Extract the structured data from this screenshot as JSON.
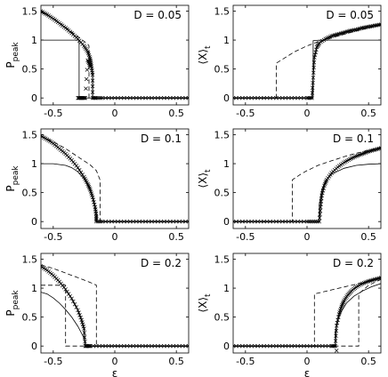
{
  "chart_data": [
    {
      "type": "line",
      "panel": "D = 0.05",
      "ylabel": "P",
      "ylabel_sub": "peak",
      "xlabel": "",
      "xlim": [
        -0.6,
        0.6
      ],
      "ylim": [
        -0.12,
        1.6
      ],
      "xticks": [
        -0.5,
        0,
        0.5
      ],
      "xtick_labels": [
        "-0.5",
        "0",
        "0.5"
      ],
      "yticks": [
        0,
        0.5,
        1,
        1.5
      ],
      "ytick_labels": [
        "0",
        "0.5",
        "1",
        "1.5"
      ],
      "series": [
        {
          "style": "solid",
          "x": [
            -0.6,
            -0.29,
            -0.29,
            0.6
          ],
          "y": [
            1.0,
            1.0,
            0.0,
            0.0
          ]
        },
        {
          "style": "dashed",
          "x": [
            -0.6,
            -0.5,
            -0.4,
            -0.3,
            -0.25,
            -0.22,
            -0.21,
            -0.21,
            0.6
          ],
          "y": [
            1.48,
            1.38,
            1.22,
            1.06,
            0.98,
            0.93,
            0.9,
            0.0,
            0.0
          ]
        },
        {
          "style": "markers-solid",
          "x": [
            -0.6,
            -0.55,
            -0.5,
            -0.45,
            -0.4,
            -0.35,
            -0.3,
            -0.25,
            -0.22,
            -0.2,
            -0.19,
            -0.18,
            -0.18,
            -0.15,
            -0.1,
            0.0,
            0.1,
            0.2,
            0.3,
            0.4,
            0.5,
            0.6
          ],
          "y": [
            1.5,
            1.44,
            1.37,
            1.29,
            1.21,
            1.12,
            1.02,
            0.9,
            0.8,
            0.68,
            0.55,
            0.4,
            0.0,
            0.0,
            0.0,
            0.0,
            0.0,
            0.0,
            0.0,
            0.0,
            0.0,
            0.0
          ]
        },
        {
          "style": "markers",
          "x": [
            -0.3,
            -0.28,
            -0.26,
            -0.24,
            -0.22,
            -0.2
          ],
          "y": [
            0.0,
            0.0,
            0.0,
            0.0,
            0.65,
            0.55
          ]
        }
      ]
    },
    {
      "type": "line",
      "panel": "D = 0.05",
      "ylabel": "⟨X⟩",
      "ylabel_sub": "t",
      "xlabel": "",
      "xlim": [
        -0.6,
        0.6
      ],
      "ylim": [
        -0.12,
        1.6
      ],
      "xticks": [
        -0.5,
        0,
        0.5
      ],
      "xtick_labels": [
        "-0.5",
        "0",
        "0.5"
      ],
      "yticks": [
        0,
        0.5,
        1,
        1.5
      ],
      "ytick_labels": [
        "0",
        "0.5",
        "1",
        "1.5"
      ],
      "series": [
        {
          "style": "solid",
          "x": [
            -0.6,
            0.05,
            0.05,
            0.1,
            0.2,
            0.3,
            0.4,
            0.5,
            0.6
          ],
          "y": [
            0.0,
            0.0,
            0.99,
            1.0,
            1.0,
            1.0,
            1.0,
            1.0,
            1.0
          ]
        },
        {
          "style": "dashed",
          "x": [
            -0.6,
            -0.25,
            -0.25,
            -0.1,
            0.0,
            0.1,
            0.2,
            0.3,
            0.4,
            0.5,
            0.6
          ],
          "y": [
            0.0,
            0.0,
            0.6,
            0.8,
            0.9,
            0.98,
            1.04,
            1.1,
            1.16,
            1.21,
            1.26
          ]
        },
        {
          "style": "markers-solid",
          "x": [
            -0.6,
            -0.5,
            -0.4,
            -0.3,
            -0.2,
            -0.1,
            0.0,
            0.04,
            0.05,
            0.06,
            0.08,
            0.1,
            0.15,
            0.2,
            0.25,
            0.3,
            0.35,
            0.4,
            0.45,
            0.5,
            0.55,
            0.6
          ],
          "y": [
            0.0,
            0.0,
            0.0,
            0.0,
            0.0,
            0.0,
            0.0,
            0.0,
            0.35,
            0.7,
            0.88,
            0.95,
            1.02,
            1.07,
            1.1,
            1.13,
            1.16,
            1.18,
            1.21,
            1.23,
            1.25,
            1.27
          ]
        }
      ]
    },
    {
      "type": "line",
      "panel": "D = 0.1",
      "ylabel": "P",
      "ylabel_sub": "peak",
      "xlabel": "",
      "xlim": [
        -0.6,
        0.6
      ],
      "ylim": [
        -0.12,
        1.6
      ],
      "xticks": [
        -0.5,
        0,
        0.5
      ],
      "xtick_labels": [
        "-0.5",
        "0",
        "0.5"
      ],
      "yticks": [
        0,
        0.5,
        1,
        1.5
      ],
      "ytick_labels": [
        "0",
        "0.5",
        "1",
        "1.5"
      ],
      "series": [
        {
          "style": "solid",
          "x": [
            -0.6,
            -0.5,
            -0.4,
            -0.35,
            -0.3,
            -0.25,
            -0.2,
            -0.17,
            -0.15,
            -0.15,
            0.6
          ],
          "y": [
            1.0,
            1.0,
            0.97,
            0.93,
            0.86,
            0.74,
            0.55,
            0.35,
            0.15,
            0.0,
            0.0
          ]
        },
        {
          "style": "dashed",
          "x": [
            -0.6,
            -0.5,
            -0.4,
            -0.3,
            -0.2,
            -0.15,
            -0.12,
            -0.12,
            0.6
          ],
          "y": [
            1.48,
            1.38,
            1.26,
            1.12,
            0.98,
            0.88,
            0.72,
            0.0,
            0.0
          ]
        },
        {
          "style": "markers-solid",
          "x": [
            -0.6,
            -0.55,
            -0.5,
            -0.45,
            -0.4,
            -0.35,
            -0.3,
            -0.25,
            -0.22,
            -0.2,
            -0.18,
            -0.16,
            -0.15,
            -0.15,
            -0.1,
            0.0,
            0.1,
            0.2,
            0.3,
            0.4,
            0.5,
            0.6
          ],
          "y": [
            1.48,
            1.42,
            1.35,
            1.26,
            1.17,
            1.06,
            0.93,
            0.77,
            0.65,
            0.55,
            0.42,
            0.25,
            0.1,
            0.0,
            0.0,
            0.0,
            0.0,
            0.0,
            0.0,
            0.0,
            0.0,
            0.0
          ]
        }
      ]
    },
    {
      "type": "line",
      "panel": "D = 0.1",
      "ylabel": "⟨X⟩",
      "ylabel_sub": "t",
      "xlabel": "",
      "xlim": [
        -0.6,
        0.6
      ],
      "ylim": [
        -0.12,
        1.6
      ],
      "xticks": [
        -0.5,
        0,
        0.5
      ],
      "xtick_labels": [
        "-0.5",
        "0",
        "0.5"
      ],
      "yticks": [
        0,
        0.5,
        1,
        1.5
      ],
      "ytick_labels": [
        "0",
        "0.5",
        "1",
        "1.5"
      ],
      "series": [
        {
          "style": "solid",
          "x": [
            -0.6,
            0.1,
            0.1,
            0.12,
            0.15,
            0.2,
            0.3,
            0.4,
            0.5,
            0.6
          ],
          "y": [
            0.0,
            0.0,
            0.3,
            0.55,
            0.7,
            0.82,
            0.92,
            0.97,
            0.99,
            1.0
          ]
        },
        {
          "style": "dashed",
          "x": [
            -0.6,
            -0.12,
            -0.12,
            -0.05,
            0.0,
            0.1,
            0.2,
            0.3,
            0.4,
            0.5,
            0.6
          ],
          "y": [
            0.0,
            0.0,
            0.72,
            0.82,
            0.88,
            0.98,
            1.05,
            1.12,
            1.18,
            1.23,
            1.28
          ]
        },
        {
          "style": "markers-solid",
          "x": [
            -0.6,
            -0.5,
            -0.4,
            -0.3,
            -0.2,
            -0.1,
            0.0,
            0.05,
            0.1,
            0.11,
            0.12,
            0.14,
            0.16,
            0.2,
            0.25,
            0.3,
            0.35,
            0.4,
            0.45,
            0.5,
            0.55,
            0.6
          ],
          "y": [
            0.0,
            0.0,
            0.0,
            0.0,
            0.0,
            0.0,
            0.0,
            0.0,
            0.0,
            0.25,
            0.45,
            0.62,
            0.72,
            0.84,
            0.94,
            1.02,
            1.08,
            1.13,
            1.17,
            1.21,
            1.24,
            1.27
          ]
        }
      ]
    },
    {
      "type": "line",
      "panel": "D = 0.2",
      "ylabel": "P",
      "ylabel_sub": "peak",
      "xlabel": "ε",
      "xlim": [
        -0.6,
        0.6
      ],
      "ylim": [
        -0.12,
        1.6
      ],
      "xticks": [
        -0.5,
        0,
        0.5
      ],
      "xtick_labels": [
        "-0.5",
        "0",
        "0.5"
      ],
      "yticks": [
        0,
        0.5,
        1,
        1.5
      ],
      "ytick_labels": [
        "0",
        "0.5",
        "1",
        "1.5"
      ],
      "series": [
        {
          "style": "solid",
          "x": [
            -0.6,
            -0.55,
            -0.5,
            -0.45,
            -0.4,
            -0.35,
            -0.3,
            -0.26,
            -0.24,
            -0.24,
            0.6
          ],
          "y": [
            0.93,
            0.9,
            0.83,
            0.74,
            0.63,
            0.5,
            0.34,
            0.18,
            0.08,
            0.0,
            0.0
          ]
        },
        {
          "style": "dashed",
          "x": [
            -0.6,
            -0.4,
            -0.4,
            0.6
          ],
          "y": [
            1.05,
            1.05,
            0.0,
            0.0
          ]
        },
        {
          "style": "dashed",
          "x": [
            -0.6,
            -0.5,
            -0.4,
            -0.3,
            -0.2,
            -0.15,
            -0.15
          ],
          "y": [
            1.4,
            1.34,
            1.26,
            1.18,
            1.1,
            1.05,
            0.0
          ]
        },
        {
          "style": "markers-solid",
          "x": [
            -0.6,
            -0.55,
            -0.5,
            -0.45,
            -0.4,
            -0.35,
            -0.3,
            -0.27,
            -0.25,
            -0.24,
            -0.22,
            -0.2,
            -0.1,
            0.0,
            0.1,
            0.2,
            0.3,
            0.4,
            0.5,
            0.6
          ],
          "y": [
            1.38,
            1.31,
            1.22,
            1.11,
            0.98,
            0.82,
            0.62,
            0.45,
            0.3,
            0.0,
            0.0,
            0.0,
            0.0,
            0.0,
            0.0,
            0.0,
            0.0,
            0.0,
            0.0,
            0.0
          ]
        }
      ]
    },
    {
      "type": "line",
      "panel": "D = 0.2",
      "ylabel": "⟨X⟩",
      "ylabel_sub": "t",
      "xlabel": "ε",
      "xlim": [
        -0.6,
        0.6
      ],
      "ylim": [
        -0.12,
        1.6
      ],
      "xticks": [
        -0.5,
        0,
        0.5
      ],
      "xtick_labels": [
        "-0.5",
        "0",
        "0.5"
      ],
      "yticks": [
        0,
        0.5,
        1,
        1.5
      ],
      "ytick_labels": [
        "0",
        "0.5",
        "1",
        "1.5"
      ],
      "series": [
        {
          "style": "solid",
          "x": [
            -0.6,
            0.23,
            0.23,
            0.25,
            0.28,
            0.32,
            0.38,
            0.45,
            0.52,
            0.6
          ],
          "y": [
            0.0,
            0.0,
            0.25,
            0.45,
            0.6,
            0.74,
            0.86,
            0.95,
            1.02,
            1.08
          ]
        },
        {
          "style": "dashed",
          "x": [
            -0.6,
            0.06,
            0.06,
            0.2,
            0.3,
            0.42,
            0.5,
            0.6
          ],
          "y": [
            0.0,
            0.0,
            0.9,
            0.97,
            1.02,
            1.08,
            1.12,
            1.17
          ]
        },
        {
          "style": "dashed",
          "x": [
            0.22,
            0.42,
            0.42,
            0.5,
            0.6
          ],
          "y": [
            0.0,
            0.0,
            0.9,
            1.05,
            1.15
          ]
        },
        {
          "style": "markers-solid",
          "x": [
            -0.6,
            -0.5,
            -0.4,
            -0.3,
            -0.2,
            -0.1,
            0.0,
            0.1,
            0.2,
            0.23,
            0.24,
            0.26,
            0.28,
            0.3,
            0.33,
            0.36,
            0.4,
            0.45,
            0.5,
            0.55,
            0.6
          ],
          "y": [
            0.0,
            0.0,
            0.0,
            0.0,
            0.0,
            0.0,
            0.0,
            0.0,
            0.0,
            0.0,
            0.35,
            0.55,
            0.68,
            0.78,
            0.88,
            0.95,
            1.02,
            1.08,
            1.12,
            1.15,
            1.18
          ]
        },
        {
          "style": "markers",
          "x": [
            0.24
          ],
          "y": [
            -0.08
          ]
        }
      ]
    }
  ]
}
